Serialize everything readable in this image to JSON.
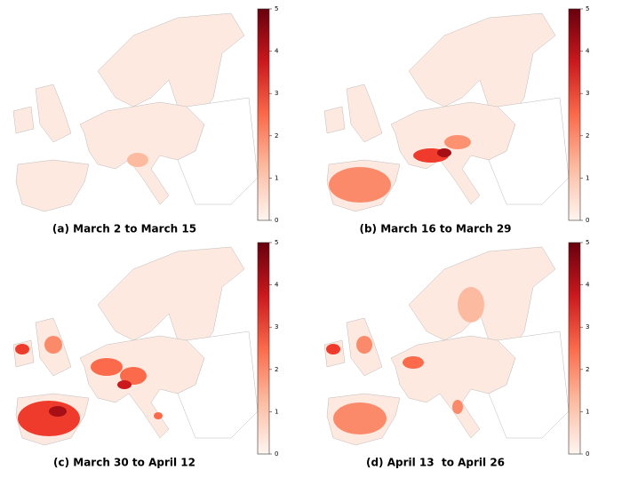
{
  "panels": [
    {
      "caption": "(a) March 2 to March 15",
      "colorbar": {
        "lim": [
          0,
          5
        ],
        "ticks": [
          0,
          1,
          2,
          3,
          4,
          5
        ]
      }
    },
    {
      "caption": "(b) March 16 to March 29",
      "colorbar": {
        "lim": [
          0,
          5
        ],
        "ticks": [
          0,
          1,
          2,
          3,
          4,
          5
        ]
      }
    },
    {
      "caption": "(c) March 30 to April 12",
      "colorbar": {
        "lim": [
          0,
          5
        ],
        "ticks": [
          0,
          1,
          2,
          3,
          4,
          5
        ]
      }
    },
    {
      "caption": "(d) April 13  to April 26",
      "colorbar": {
        "lim": [
          0,
          5
        ],
        "ticks": [
          0,
          1,
          2,
          3,
          4,
          5
        ]
      }
    }
  ]
}
